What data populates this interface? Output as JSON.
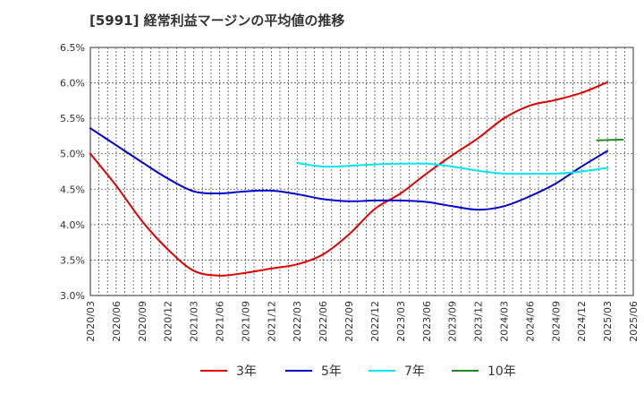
{
  "chart_data": {
    "type": "line",
    "title": "[5991]  経常利益マージンの平均値の推移",
    "xlabel": "",
    "ylabel": "",
    "ylim": [
      3.0,
      6.5
    ],
    "yticks": [
      "3.0%",
      "3.5%",
      "4.0%",
      "4.5%",
      "5.0%",
      "5.5%",
      "6.0%",
      "6.5%"
    ],
    "x_ticks": [
      "2020/03",
      "2020/06",
      "2020/09",
      "2020/12",
      "2021/03",
      "2021/06",
      "2021/09",
      "2021/12",
      "2022/03",
      "2022/06",
      "2022/09",
      "2022/12",
      "2023/03",
      "2023/06",
      "2023/09",
      "2023/12",
      "2024/03",
      "2024/06",
      "2024/09",
      "2024/12",
      "2025/03",
      "2025/06"
    ],
    "grid": true,
    "legend_position": "bottom",
    "series": [
      {
        "name": "3年",
        "color": "#dd0000",
        "start_index": 0,
        "values": [
          5.0,
          4.55,
          4.05,
          3.65,
          3.35,
          3.28,
          3.32,
          3.38,
          3.44,
          3.58,
          3.86,
          4.22,
          4.44,
          4.72,
          4.98,
          5.22,
          5.5,
          5.68,
          5.76,
          5.86,
          6.01
        ]
      },
      {
        "name": "5年",
        "color": "#0000cc",
        "start_index": 0,
        "values": [
          5.36,
          5.12,
          4.88,
          4.65,
          4.47,
          4.44,
          4.47,
          4.48,
          4.43,
          4.36,
          4.33,
          4.34,
          4.34,
          4.32,
          4.26,
          4.21,
          4.26,
          4.4,
          4.58,
          4.82,
          5.04
        ]
      },
      {
        "name": "7年",
        "color": "#00e5ee",
        "start_index": 8,
        "values": [
          4.87,
          4.82,
          4.83,
          4.85,
          4.86,
          4.86,
          4.82,
          4.76,
          4.72,
          4.72,
          4.72,
          4.75,
          4.8
        ]
      },
      {
        "name": "10年",
        "color": "#228b22",
        "start_index": 19.6,
        "values": [
          5.19,
          5.2
        ]
      }
    ]
  }
}
